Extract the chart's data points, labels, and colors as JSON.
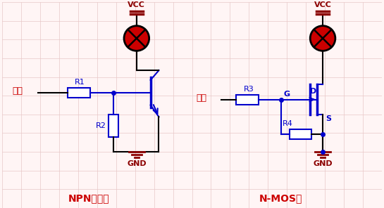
{
  "bg_color": "#fff5f5",
  "grid_color": "#e8c8c8",
  "line_color": "#0000cc",
  "red_color": "#cc0000",
  "dark_red": "#8b0000",
  "title_left": "NPN三极管",
  "title_right": "N-MOS管",
  "label_input": "输入",
  "label_vcc": "VCC",
  "label_gnd": "GND",
  "label_r1": "R1",
  "label_r2": "R2",
  "label_r3": "R3",
  "label_r4": "R4",
  "label_g": "G",
  "label_d": "D",
  "label_s": "S"
}
